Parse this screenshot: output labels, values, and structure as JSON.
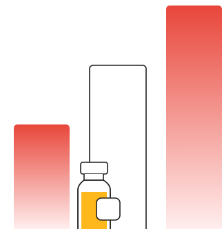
{
  "illustration": {
    "subject": "bars-and-vial",
    "bars": [
      {
        "role": "short-red-bar",
        "level": 0.46
      },
      {
        "role": "tall-red-bar",
        "level": 0.98
      }
    ],
    "vial": {
      "icon": "medicine-vial-icon",
      "liquid_level": 0.55
    }
  },
  "colors": {
    "bar_top": "#e8463a",
    "bar_bottom": "#ffeeee",
    "outline": "#1f1f1f",
    "liquid": "#ffb81c",
    "background": "#ffffff"
  }
}
